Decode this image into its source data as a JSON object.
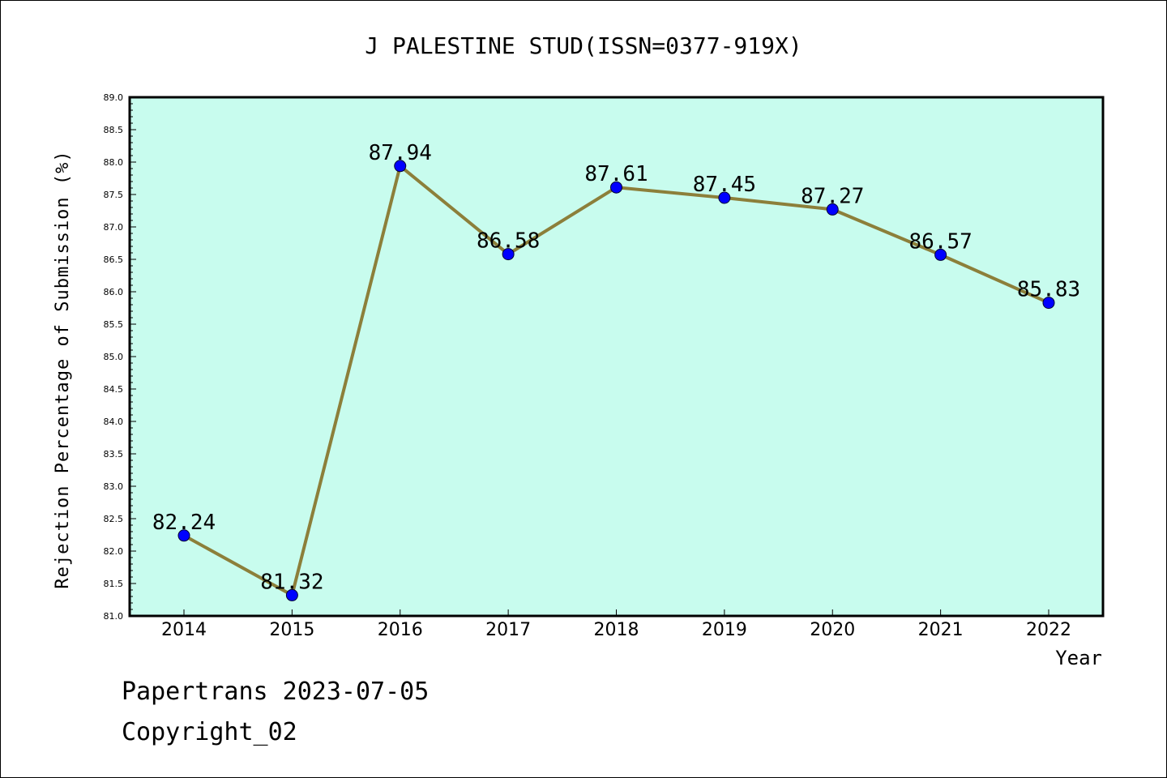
{
  "chart_data": {
    "type": "line",
    "title": "J PALESTINE STUD(ISSN=0377-919X)",
    "xlabel": "Year",
    "ylabel": "Rejection Percentage of Submission (%)",
    "categories": [
      "2014",
      "2015",
      "2016",
      "2017",
      "2018",
      "2019",
      "2020",
      "2021",
      "2022"
    ],
    "values": [
      82.24,
      81.32,
      87.94,
      86.58,
      87.61,
      87.45,
      87.27,
      86.57,
      85.83
    ],
    "data_labels": [
      "82.24",
      "81.32",
      "87.94",
      "86.58",
      "87.61",
      "87.45",
      "87.27",
      "86.57",
      "85.83"
    ],
    "ylim": [
      81.0,
      89.0
    ],
    "yticks": [
      "81.0",
      "81.5",
      "82.0",
      "82.5",
      "83.0",
      "83.5",
      "84.0",
      "84.5",
      "85.0",
      "85.5",
      "86.0",
      "86.5",
      "87.0",
      "87.5",
      "88.0",
      "88.5",
      "89.0"
    ],
    "grid": false,
    "colors": {
      "plot_background": "#c8fcee",
      "line": "#8c7f3a",
      "marker": "#0000ff"
    }
  },
  "footer": {
    "line1": "Papertrans 2023-07-05",
    "line2": "Copyright_02"
  }
}
